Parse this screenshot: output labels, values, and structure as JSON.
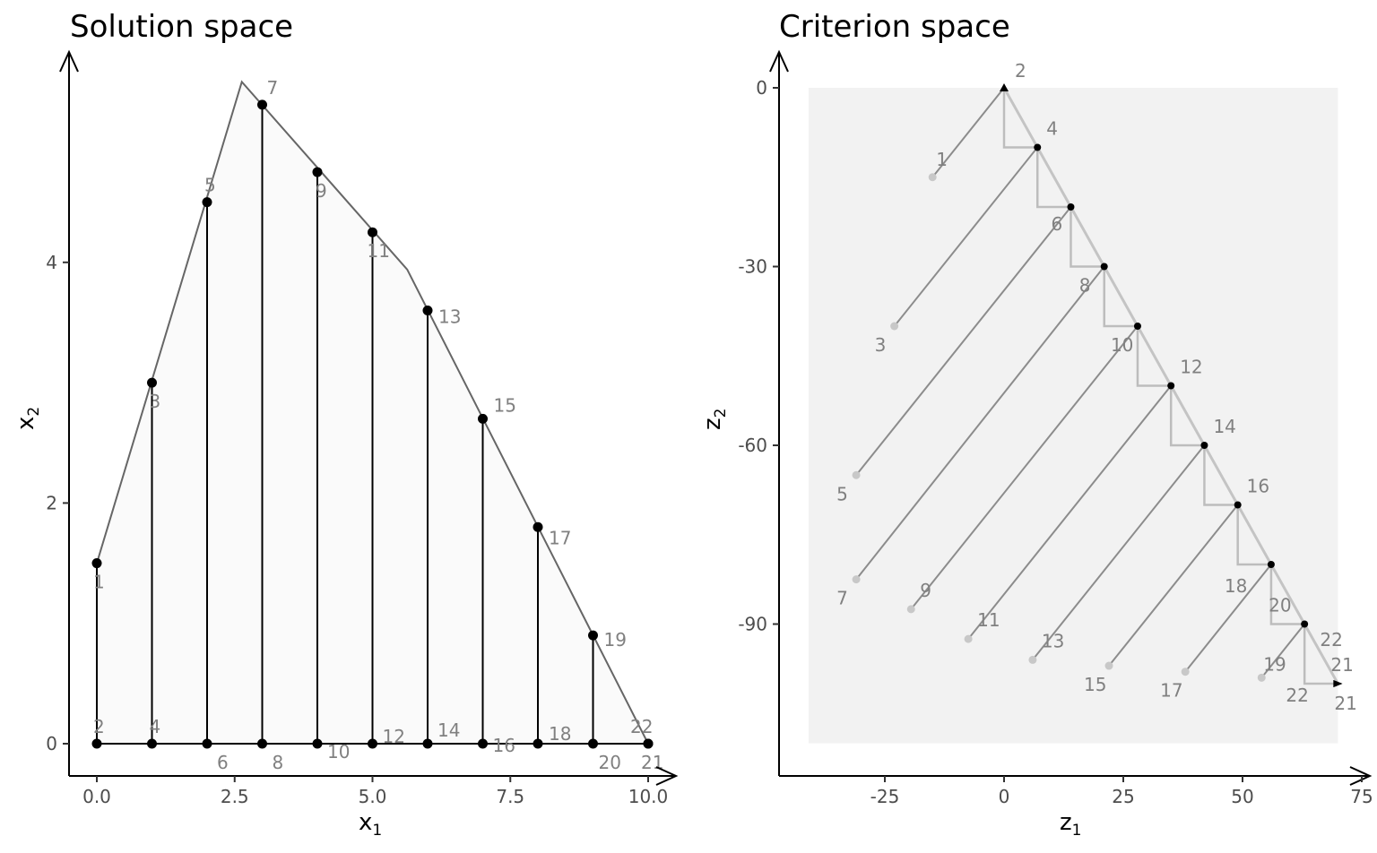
{
  "chart_data": [
    {
      "type": "scatter",
      "title": "Solution space",
      "xlabel": "x",
      "xlabel_sub": "1",
      "ylabel": "x",
      "ylabel_sub": "2",
      "xlim": [
        -0.5,
        10.5
      ],
      "ylim": [
        -0.27,
        5.5
      ],
      "x_ticks": [
        {
          "value": 0,
          "label": "0.0"
        },
        {
          "value": 2.5,
          "label": "2.5"
        },
        {
          "value": 5,
          "label": "5.0"
        },
        {
          "value": 7.5,
          "label": "7.5"
        },
        {
          "value": 10,
          "label": "10.0"
        }
      ],
      "y_ticks": [
        {
          "value": 0,
          "label": "0"
        },
        {
          "value": 2,
          "label": "2"
        },
        {
          "value": 4,
          "label": "4"
        }
      ],
      "polytope": [
        [
          0,
          0
        ],
        [
          0,
          1.5
        ],
        [
          2.63,
          5.5
        ],
        [
          5.63,
          3.94
        ],
        [
          10,
          0
        ]
      ],
      "polytope_fill": "#fafafa",
      "points": [
        {
          "id": "1",
          "x": 0,
          "y": 1.5
        },
        {
          "id": "2",
          "x": 0,
          "y": 0
        },
        {
          "id": "3",
          "x": 1,
          "y": 3
        },
        {
          "id": "4",
          "x": 1,
          "y": 0
        },
        {
          "id": "5",
          "x": 2,
          "y": 4.5
        },
        {
          "id": "6",
          "x": 2,
          "y": 0
        },
        {
          "id": "7",
          "x": 3,
          "y": 5.31
        },
        {
          "id": "8",
          "x": 3,
          "y": 0
        },
        {
          "id": "9",
          "x": 4,
          "y": 4.75
        },
        {
          "id": "10",
          "x": 4,
          "y": 0
        },
        {
          "id": "11",
          "x": 5,
          "y": 4.25
        },
        {
          "id": "12",
          "x": 5,
          "y": 0
        },
        {
          "id": "13",
          "x": 6,
          "y": 3.6
        },
        {
          "id": "14",
          "x": 6,
          "y": 0
        },
        {
          "id": "15",
          "x": 7,
          "y": 2.7
        },
        {
          "id": "16",
          "x": 7,
          "y": 0
        },
        {
          "id": "17",
          "x": 8,
          "y": 1.8
        },
        {
          "id": "18",
          "x": 8,
          "y": 0
        },
        {
          "id": "19",
          "x": 9,
          "y": 0.9
        },
        {
          "id": "20",
          "x": 9,
          "y": 0
        },
        {
          "id": "21",
          "x": 10,
          "y": 0
        },
        {
          "id": "22",
          "x": 10,
          "y": 0
        }
      ],
      "vertical_segments": [
        {
          "x": 0,
          "y0": 0,
          "y1": 1.5
        },
        {
          "x": 1,
          "y0": 0,
          "y1": 3
        },
        {
          "x": 2,
          "y0": 0,
          "y1": 4.5
        },
        {
          "x": 3,
          "y0": 0,
          "y1": 5.31
        },
        {
          "x": 4,
          "y0": 0,
          "y1": 4.75
        },
        {
          "x": 5,
          "y0": 0,
          "y1": 4.25
        },
        {
          "x": 6,
          "y0": 0,
          "y1": 3.6
        },
        {
          "x": 7,
          "y0": 0,
          "y1": 2.7
        },
        {
          "x": 8,
          "y0": 0,
          "y1": 1.8
        },
        {
          "x": 9,
          "y0": 0,
          "y1": 0.9
        }
      ]
    },
    {
      "type": "scatter",
      "title": "Criterion space",
      "xlabel": "z",
      "xlabel_sub": "1",
      "ylabel": "z",
      "ylabel_sub": "2",
      "xlim": [
        -47,
        75
      ],
      "ylim": [
        -115,
        5
      ],
      "x_ticks": [
        {
          "value": -25,
          "label": "-25"
        },
        {
          "value": 0,
          "label": "0"
        },
        {
          "value": 25,
          "label": "25"
        },
        {
          "value": 50,
          "label": "50"
        },
        {
          "value": 75,
          "label": "75"
        }
      ],
      "y_ticks": [
        {
          "value": 0,
          "label": "0"
        },
        {
          "value": -30,
          "label": "-30"
        },
        {
          "value": -60,
          "label": "-60"
        },
        {
          "value": -90,
          "label": "-90"
        }
      ],
      "background_rect": {
        "x0": -41,
        "x1": 70,
        "y0": -110,
        "y1": 0,
        "fill": "#f2f2f2"
      },
      "frontier": [
        {
          "id": "2",
          "x": 0,
          "y": 0
        },
        {
          "id": "4",
          "x": 7,
          "y": -10
        },
        {
          "id": "6",
          "x": 14,
          "y": -20
        },
        {
          "id": "8",
          "x": 21,
          "y": -30
        },
        {
          "id": "10",
          "x": 28,
          "y": -40
        },
        {
          "id": "12",
          "x": 35,
          "y": -50
        },
        {
          "id": "14",
          "x": 42,
          "y": -60
        },
        {
          "id": "16",
          "x": 49,
          "y": -70
        },
        {
          "id": "18",
          "x": 56,
          "y": -80
        },
        {
          "id": "20",
          "x": 63,
          "y": -90
        },
        {
          "id": "21",
          "x": 70,
          "y": -100
        },
        {
          "id": "22",
          "x": 70,
          "y": -100
        }
      ],
      "dominated": [
        {
          "id": "1",
          "x": -15,
          "y": -15,
          "target": "2"
        },
        {
          "id": "3",
          "x": -23,
          "y": -40,
          "target": "4"
        },
        {
          "id": "5",
          "x": -31,
          "y": -65,
          "target": "6"
        },
        {
          "id": "7",
          "x": -31,
          "y": -82.5,
          "target": "8"
        },
        {
          "id": "9",
          "x": -19.5,
          "y": -87.5,
          "target": "10"
        },
        {
          "id": "11",
          "x": -7.5,
          "y": -92.5,
          "target": "12"
        },
        {
          "id": "13",
          "x": 6,
          "y": -96,
          "target": "14"
        },
        {
          "id": "15",
          "x": 22,
          "y": -97,
          "target": "16"
        },
        {
          "id": "17",
          "x": 38,
          "y": -98,
          "target": "18"
        },
        {
          "id": "19",
          "x": 54,
          "y": -99,
          "target": "20"
        }
      ]
    }
  ]
}
